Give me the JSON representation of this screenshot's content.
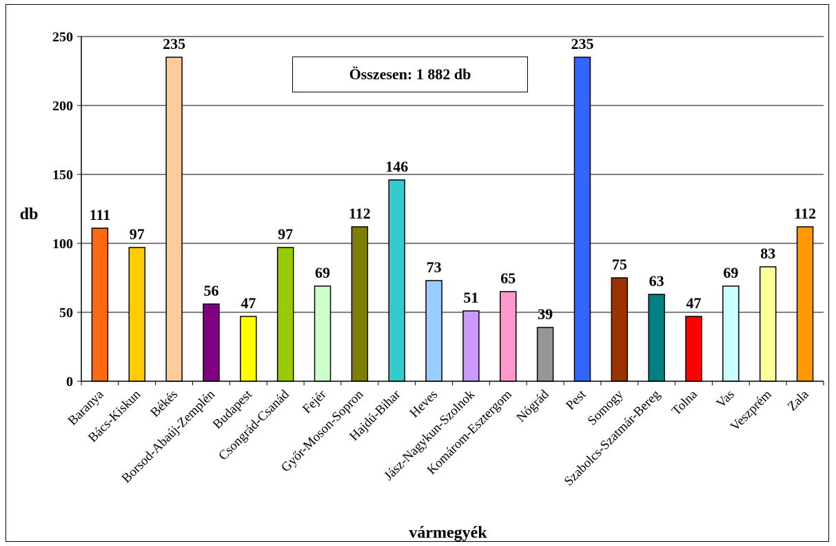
{
  "chart_data": {
    "type": "bar",
    "categories": [
      "Baranya",
      "Bács-Kiskun",
      "Békés",
      "Borsod-Abaúj-Zemplén",
      "Budapest",
      "Csongrád-Csanád",
      "Fejér",
      "Győr-Moson-Sopron",
      "Hajdú-Bihar",
      "Heves",
      "Jász-Nagykun-Szolnok",
      "Komárom-Esztergom",
      "Nógrád",
      "Pest",
      "Somogy",
      "Szabolcs-Szatmár-Bereg",
      "Tolna",
      "Vas",
      "Veszprém",
      "Zala"
    ],
    "values": [
      111,
      97,
      235,
      56,
      47,
      97,
      69,
      112,
      146,
      73,
      51,
      65,
      39,
      235,
      75,
      63,
      47,
      69,
      83,
      112
    ],
    "colors": [
      "#ff6a10",
      "#ffcc00",
      "#ffcc99",
      "#800080",
      "#ffff00",
      "#99cc00",
      "#ccffcc",
      "#808000",
      "#33cccc",
      "#99ccff",
      "#cc99ff",
      "#ff99cc",
      "#969696",
      "#3366ff",
      "#993300",
      "#008080",
      "#ff0000",
      "#ccffff",
      "#ffff99",
      "#ff9900"
    ],
    "xlabel": "vármegyék",
    "ylabel": "db",
    "ylim": [
      0,
      250
    ],
    "yticks": [
      0,
      50,
      100,
      150,
      200,
      250
    ],
    "grid": true,
    "annotation": "Összesen: 1 882 db"
  }
}
